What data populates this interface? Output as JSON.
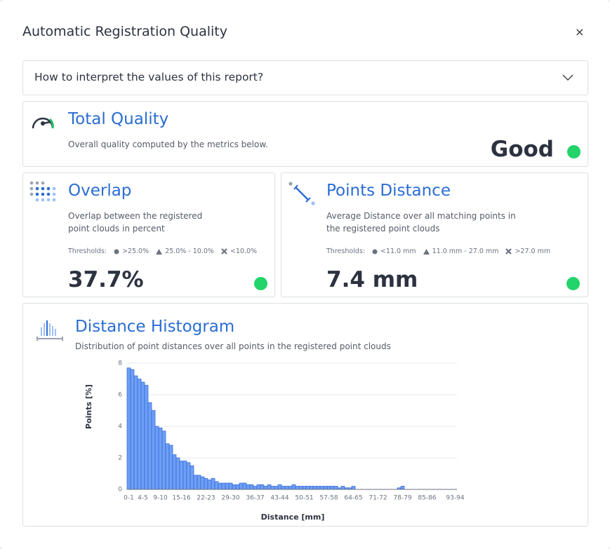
{
  "dialog": {
    "title": "Automatic Registration Quality",
    "close": "×"
  },
  "accordion": {
    "label": "How to interpret the values of this report?"
  },
  "total_quality": {
    "title": "Total Quality",
    "description": "Overall quality computed by the metrics below.",
    "value": "Good"
  },
  "overlap": {
    "title": "Overlap",
    "description": "Overlap between the registered point clouds in percent",
    "thresholds_label": "Thresholds:",
    "thresholds": [
      ">25.0%",
      "25.0% - 10.0%",
      "<10.0%"
    ],
    "value": "37.7%"
  },
  "points_distance": {
    "title": "Points Distance",
    "description": "Average Distance over all matching points in the registered point clouds",
    "thresholds_label": "Thresholds:",
    "thresholds": [
      "<11.0 mm",
      "11.0 mm - 27.0 mm",
      ">27.0 mm"
    ],
    "value": "7.4 mm"
  },
  "histogram": {
    "title": "Distance Histogram",
    "description": "Distribution of point distances over all points in the registered point clouds"
  },
  "chart_data": {
    "type": "bar",
    "x_label": "Distance [mm]",
    "y_label": "Points [%]",
    "categories": [
      "0-1",
      null,
      null,
      null,
      "4-5",
      null,
      null,
      null,
      null,
      "9-10",
      null,
      null,
      null,
      null,
      null,
      "15-16",
      null,
      null,
      null,
      null,
      null,
      null,
      "22-23",
      null,
      null,
      null,
      null,
      null,
      null,
      "29-30",
      null,
      null,
      null,
      null,
      null,
      null,
      "36-37",
      null,
      null,
      null,
      null,
      null,
      null,
      "43-44",
      null,
      null,
      null,
      null,
      null,
      null,
      "50-51",
      null,
      null,
      null,
      null,
      null,
      null,
      "57-58",
      null,
      null,
      null,
      null,
      null,
      null,
      "64-65",
      null,
      null,
      null,
      null,
      null,
      null,
      "71-72",
      null,
      null,
      null,
      null,
      null,
      null,
      "78-79",
      null,
      null,
      null,
      null,
      null,
      null,
      "85-86",
      null,
      null,
      null,
      null,
      null,
      null,
      null,
      "93-94"
    ],
    "values": [
      7.7,
      7.6,
      7.2,
      7.0,
      6.8,
      6.6,
      5.5,
      5.0,
      4.0,
      3.9,
      3.7,
      2.9,
      2.8,
      2.2,
      2.0,
      1.8,
      1.8,
      1.7,
      1.5,
      0.9,
      0.9,
      0.8,
      0.7,
      0.6,
      0.7,
      0.5,
      0.4,
      0.4,
      0.4,
      0.4,
      0.3,
      0.3,
      0.4,
      0.4,
      0.3,
      0.3,
      0.2,
      0.3,
      0.3,
      0.2,
      0.3,
      0.2,
      0.2,
      0.3,
      0.2,
      0.2,
      0.2,
      0.3,
      0.2,
      0.2,
      0.2,
      0.2,
      0.2,
      0.2,
      0.2,
      0.2,
      0.2,
      0.2,
      0.2,
      0.2,
      0.1,
      0.2,
      0.1,
      0.1,
      0.2,
      0,
      0,
      0,
      0,
      0,
      0,
      0,
      0,
      0,
      0,
      0,
      0,
      0.1,
      0.2,
      0,
      0,
      0,
      0,
      0,
      0,
      0,
      0,
      0,
      0,
      0,
      0,
      0,
      0,
      0
    ],
    "color": "#6f9ff5",
    "edge_color": "#2d63d8",
    "ylim": [
      0,
      8
    ],
    "yticks": [
      0,
      2,
      4,
      6,
      8
    ],
    "grid": true
  }
}
